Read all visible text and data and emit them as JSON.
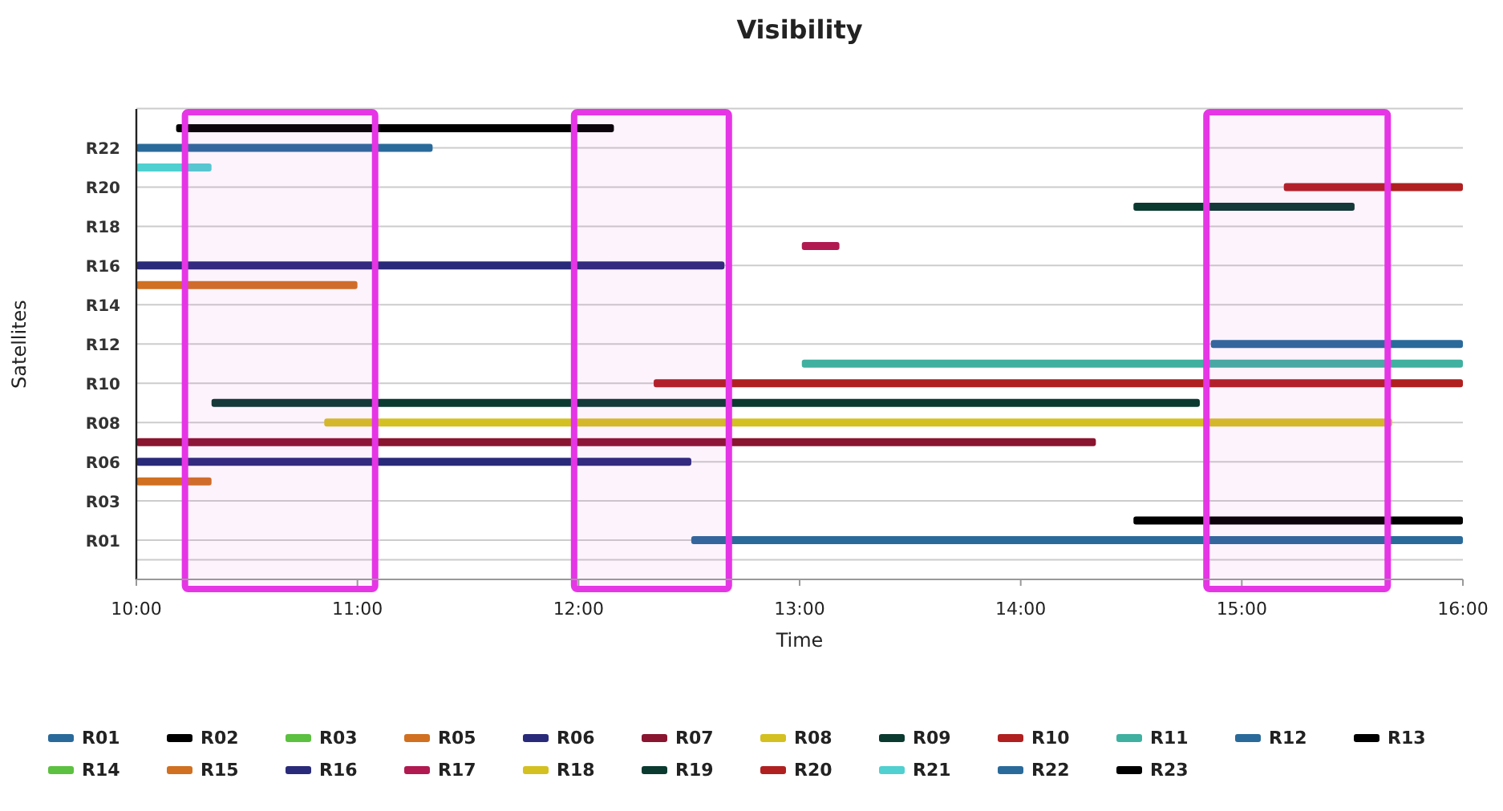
{
  "chart_data": {
    "type": "bar",
    "orientation": "horizontal",
    "title": "Visibility",
    "xlabel": "Time",
    "ylabel": "Satellites",
    "categories": [
      null,
      "R22",
      null,
      "R20",
      null,
      "R18",
      null,
      "R16",
      null,
      "R14",
      null,
      "R12",
      null,
      "R10",
      null,
      "R08",
      null,
      "R06",
      null,
      "R03",
      null,
      "R01"
    ],
    "xlim": [
      10,
      16
    ],
    "xticks": [
      {
        "value": 10,
        "label": "10:00"
      },
      {
        "value": 11,
        "label": "11:00"
      },
      {
        "value": 12,
        "label": "12:00"
      },
      {
        "value": 13,
        "label": "13:00"
      },
      {
        "value": 14,
        "label": "14:00"
      },
      {
        "value": 15,
        "label": "15:00"
      },
      {
        "value": 16,
        "label": "16:00"
      }
    ],
    "grid": "y",
    "legend": "bottom",
    "bands": [
      {
        "axis": "x",
        "from": 10.22,
        "to": 11.08,
        "color": "#e535e5"
      },
      {
        "axis": "x",
        "from": 11.98,
        "to": 12.68,
        "color": "#e535e5"
      },
      {
        "axis": "x",
        "from": 14.84,
        "to": 15.66,
        "color": "#e535e5"
      }
    ],
    "series": [
      {
        "name": "R01",
        "color": "#2a6a9a",
        "values": [
          null,
          null,
          null,
          null,
          null,
          null,
          null,
          null,
          null,
          null,
          null,
          null,
          null,
          null,
          null,
          null,
          null,
          null,
          null,
          null,
          null,
          3.49
        ],
        "base": [
          null,
          null,
          null,
          null,
          null,
          null,
          null,
          null,
          null,
          null,
          null,
          null,
          null,
          null,
          null,
          null,
          null,
          null,
          null,
          null,
          null,
          12.51
        ]
      },
      {
        "name": "R02",
        "color": "#000000",
        "values": [
          null,
          null,
          null,
          null,
          null,
          null,
          null,
          null,
          null,
          null,
          null,
          null,
          null,
          null,
          null,
          null,
          null,
          null,
          null,
          null,
          1.49,
          null
        ],
        "base": [
          null,
          null,
          null,
          null,
          null,
          null,
          null,
          null,
          null,
          null,
          null,
          null,
          null,
          null,
          null,
          null,
          null,
          null,
          null,
          null,
          14.51,
          null
        ]
      },
      {
        "name": "R03",
        "color": "#5cc040",
        "values": [
          null,
          null,
          null,
          null,
          null,
          null,
          null,
          null,
          null,
          null,
          null,
          null,
          null,
          null,
          null,
          null,
          null,
          null,
          null,
          null,
          null,
          null
        ]
      },
      {
        "name": "R05",
        "color": "#d07020",
        "values": [
          null,
          null,
          null,
          null,
          null,
          null,
          null,
          null,
          null,
          null,
          null,
          null,
          null,
          null,
          null,
          null,
          null,
          null,
          0.34,
          null,
          null,
          null
        ],
        "base": [
          null,
          null,
          null,
          null,
          null,
          null,
          null,
          null,
          null,
          null,
          null,
          null,
          null,
          null,
          null,
          null,
          null,
          null,
          10,
          null,
          null,
          null
        ]
      },
      {
        "name": "R06",
        "color": "#2a2a7a",
        "values": [
          null,
          null,
          null,
          null,
          null,
          null,
          null,
          null,
          null,
          null,
          null,
          null,
          null,
          null,
          null,
          null,
          null,
          2.51,
          null,
          null,
          null,
          null
        ],
        "base": [
          null,
          null,
          null,
          null,
          null,
          null,
          null,
          null,
          null,
          null,
          null,
          null,
          null,
          null,
          null,
          null,
          null,
          10,
          null,
          null,
          null,
          null
        ]
      },
      {
        "name": "R07",
        "color": "#8a1530",
        "values": [
          null,
          null,
          null,
          null,
          null,
          null,
          null,
          null,
          null,
          null,
          null,
          null,
          null,
          null,
          null,
          null,
          4.34,
          null,
          null,
          null,
          null,
          null
        ],
        "base": [
          null,
          null,
          null,
          null,
          null,
          null,
          null,
          null,
          null,
          null,
          null,
          null,
          null,
          null,
          null,
          null,
          10,
          null,
          null,
          null,
          null,
          null
        ]
      },
      {
        "name": "R08",
        "color": "#d4c020",
        "values": [
          null,
          null,
          null,
          null,
          null,
          null,
          null,
          null,
          null,
          null,
          null,
          null,
          null,
          null,
          null,
          4.83,
          null,
          null,
          null,
          null,
          null,
          null
        ],
        "base": [
          null,
          null,
          null,
          null,
          null,
          null,
          null,
          null,
          null,
          null,
          null,
          null,
          null,
          null,
          null,
          10.85,
          null,
          null,
          null,
          null,
          null,
          null
        ]
      },
      {
        "name": "R09",
        "color": "#0a3a30",
        "values": [
          null,
          null,
          null,
          null,
          null,
          null,
          null,
          null,
          null,
          null,
          null,
          null,
          null,
          null,
          4.47,
          null,
          null,
          null,
          null,
          null,
          null,
          null
        ],
        "base": [
          null,
          null,
          null,
          null,
          null,
          null,
          null,
          null,
          null,
          null,
          null,
          null,
          null,
          null,
          10.34,
          null,
          null,
          null,
          null,
          null,
          null,
          null
        ]
      },
      {
        "name": "R10",
        "color": "#b02020",
        "values": [
          null,
          null,
          null,
          null,
          null,
          null,
          null,
          null,
          null,
          null,
          null,
          null,
          null,
          3.66,
          null,
          null,
          null,
          null,
          null,
          null,
          null,
          null
        ],
        "base": [
          null,
          null,
          null,
          null,
          null,
          null,
          null,
          null,
          null,
          null,
          null,
          null,
          null,
          12.34,
          null,
          null,
          null,
          null,
          null,
          null,
          null,
          null
        ]
      },
      {
        "name": "R11",
        "color": "#40b0a0",
        "values": [
          null,
          null,
          null,
          null,
          null,
          null,
          null,
          null,
          null,
          null,
          null,
          null,
          2.99,
          null,
          null,
          null,
          null,
          null,
          null,
          null,
          null,
          null
        ],
        "base": [
          null,
          null,
          null,
          null,
          null,
          null,
          null,
          null,
          null,
          null,
          null,
          null,
          13.01,
          null,
          null,
          null,
          null,
          null,
          null,
          null,
          null,
          null
        ]
      },
      {
        "name": "R12",
        "color": "#2a6a9a",
        "values": [
          null,
          null,
          null,
          null,
          null,
          null,
          null,
          null,
          null,
          null,
          null,
          1.14,
          null,
          null,
          null,
          null,
          null,
          null,
          null,
          null,
          null,
          null
        ],
        "base": [
          null,
          null,
          null,
          null,
          null,
          null,
          null,
          null,
          null,
          null,
          null,
          14.86,
          null,
          null,
          null,
          null,
          null,
          null,
          null,
          null,
          null,
          null
        ]
      },
      {
        "name": "R13",
        "color": "#000000",
        "values": [
          null,
          null,
          null,
          null,
          null,
          null,
          null,
          null,
          null,
          null,
          null,
          null,
          null,
          null,
          null,
          null,
          null,
          null,
          null,
          null,
          null,
          null
        ]
      },
      {
        "name": "R14",
        "color": "#5cc040",
        "values": [
          null,
          null,
          null,
          null,
          null,
          null,
          null,
          null,
          null,
          null,
          null,
          null,
          null,
          null,
          null,
          null,
          null,
          null,
          null,
          null,
          null,
          null
        ]
      },
      {
        "name": "R15",
        "color": "#d07020",
        "values": [
          null,
          null,
          null,
          null,
          null,
          null,
          null,
          null,
          1.0,
          null,
          null,
          null,
          null,
          null,
          null,
          null,
          null,
          null,
          null,
          null,
          null,
          null
        ],
        "base": [
          null,
          null,
          null,
          null,
          null,
          null,
          null,
          null,
          10,
          null,
          null,
          null,
          null,
          null,
          null,
          null,
          null,
          null,
          null,
          null,
          null,
          null
        ]
      },
      {
        "name": "R16",
        "color": "#2a2a7a",
        "values": [
          null,
          null,
          null,
          null,
          null,
          null,
          null,
          2.66,
          null,
          null,
          null,
          null,
          null,
          null,
          null,
          null,
          null,
          null,
          null,
          null,
          null,
          null
        ],
        "base": [
          null,
          null,
          null,
          null,
          null,
          null,
          null,
          10,
          null,
          null,
          null,
          null,
          null,
          null,
          null,
          null,
          null,
          null,
          null,
          null,
          null,
          null
        ]
      },
      {
        "name": "R17",
        "color": "#b01a50",
        "values": [
          null,
          null,
          null,
          null,
          null,
          null,
          0.17,
          null,
          null,
          null,
          null,
          null,
          null,
          null,
          null,
          null,
          null,
          null,
          null,
          null,
          null,
          null
        ],
        "base": [
          null,
          null,
          null,
          null,
          null,
          null,
          13.01,
          null,
          null,
          null,
          null,
          null,
          null,
          null,
          null,
          null,
          null,
          null,
          null,
          null,
          null,
          null
        ]
      },
      {
        "name": "R18",
        "color": "#d4c020",
        "values": [
          null,
          null,
          null,
          null,
          null,
          null,
          null,
          null,
          null,
          null,
          null,
          null,
          null,
          null,
          null,
          null,
          null,
          null,
          null,
          null,
          null,
          null
        ]
      },
      {
        "name": "R19",
        "color": "#0a3a30",
        "values": [
          null,
          null,
          null,
          null,
          1.0,
          null,
          null,
          null,
          null,
          null,
          null,
          null,
          null,
          null,
          null,
          null,
          null,
          null,
          null,
          null,
          null,
          null
        ],
        "base": [
          null,
          null,
          null,
          null,
          14.51,
          null,
          null,
          null,
          null,
          null,
          null,
          null,
          null,
          null,
          null,
          null,
          null,
          null,
          null,
          null,
          null,
          null
        ]
      },
      {
        "name": "R20",
        "color": "#b02020",
        "values": [
          null,
          null,
          null,
          0.81,
          null,
          null,
          null,
          null,
          null,
          null,
          null,
          null,
          null,
          null,
          null,
          null,
          null,
          null,
          null,
          null,
          null,
          null
        ],
        "base": [
          null,
          null,
          null,
          15.19,
          null,
          null,
          null,
          null,
          null,
          null,
          null,
          null,
          null,
          null,
          null,
          null,
          null,
          null,
          null,
          null,
          null,
          null
        ]
      },
      {
        "name": "R21",
        "color": "#50d0d0",
        "values": [
          null,
          null,
          0.34,
          null,
          null,
          null,
          null,
          null,
          null,
          null,
          null,
          null,
          null,
          null,
          null,
          null,
          null,
          null,
          null,
          null,
          null,
          null
        ],
        "base": [
          null,
          null,
          10,
          null,
          null,
          null,
          null,
          null,
          null,
          null,
          null,
          null,
          null,
          null,
          null,
          null,
          null,
          null,
          null,
          null,
          null,
          null
        ]
      },
      {
        "name": "R22",
        "color": "#2a6a9a",
        "values": [
          null,
          1.34,
          null,
          null,
          null,
          null,
          null,
          null,
          null,
          null,
          null,
          null,
          null,
          null,
          null,
          null,
          null,
          null,
          null,
          null,
          null,
          null
        ],
        "base": [
          null,
          10,
          null,
          null,
          null,
          null,
          null,
          null,
          null,
          null,
          null,
          null,
          null,
          null,
          null,
          null,
          null,
          null,
          null,
          null,
          null,
          null
        ]
      },
      {
        "name": "R23",
        "color": "#000000",
        "values": [
          1.98,
          null,
          null,
          null,
          null,
          null,
          null,
          null,
          null,
          null,
          null,
          null,
          null,
          null,
          null,
          null,
          null,
          null,
          null,
          null,
          null,
          null
        ],
        "base": [
          10.18,
          null,
          null,
          null,
          null,
          null,
          null,
          null,
          null,
          null,
          null,
          null,
          null,
          null,
          null,
          null,
          null,
          null,
          null,
          null,
          null,
          null
        ]
      }
    ]
  }
}
